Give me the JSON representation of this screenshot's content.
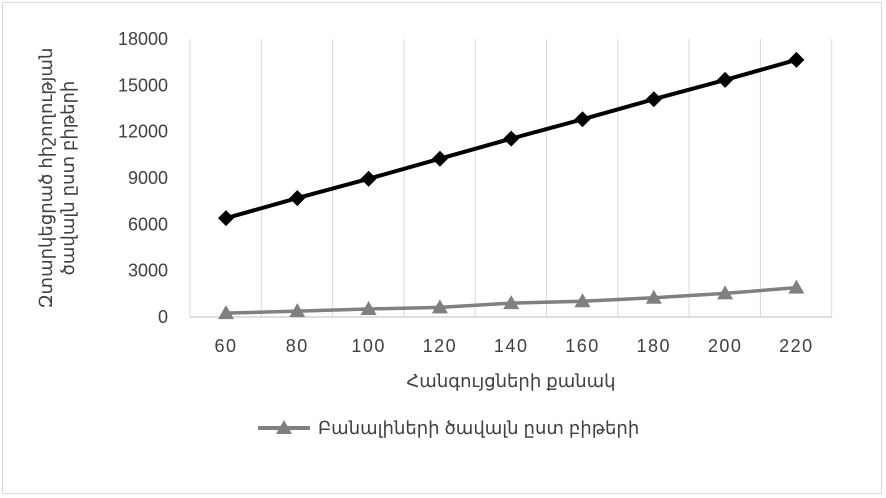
{
  "chart_data": {
    "type": "line",
    "x": [
      60,
      80,
      100,
      120,
      140,
      160,
      180,
      200,
      220
    ],
    "x_tick_labels": [
      "60",
      "80",
      "100",
      "120",
      "140",
      "160",
      "180",
      "200",
      "220"
    ],
    "y_tick_labels": [
      "0",
      "3000",
      "6000",
      "9000",
      "12000",
      "15000",
      "18000"
    ],
    "ylim": [
      0,
      18000
    ],
    "grid": "vertical",
    "xlabel": "Հանգույցների քանակ",
    "ylabel_lines": [
      "Զտարկեցրած հիշողության",
      "ծավալն ըստ բիթերի"
    ],
    "legend_position": "bottom",
    "series": [
      {
        "name": "",
        "color": "#000000",
        "marker": "diamond",
        "values": [
          6400,
          7700,
          8950,
          10250,
          11550,
          12800,
          14100,
          15350,
          16650
        ]
      },
      {
        "name": "Բանալիների ծավալն ըստ բիթերի",
        "color": "#808080",
        "marker": "triangle",
        "values": [
          250,
          380,
          520,
          620,
          900,
          1020,
          1250,
          1530,
          1900
        ]
      }
    ]
  }
}
